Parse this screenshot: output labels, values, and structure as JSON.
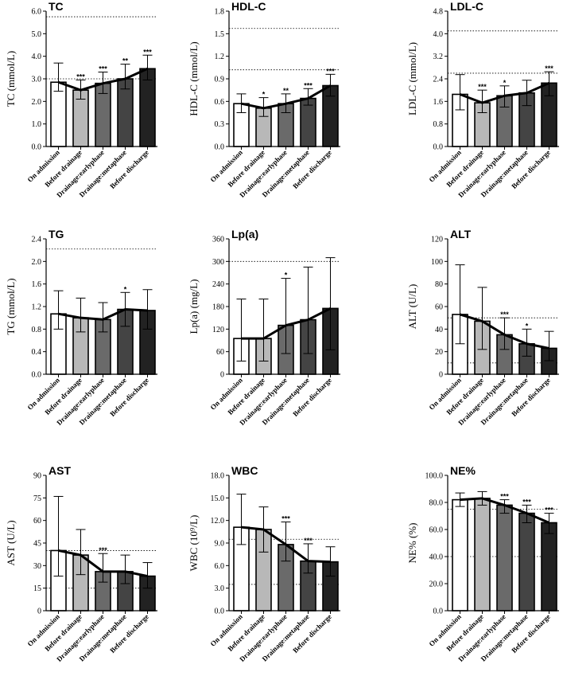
{
  "figure": {
    "categories": [
      "On admission",
      "Before drainage",
      "Drainage:earlyphase",
      "Drainage:metaphase",
      "Before discharge"
    ],
    "bar_colors": [
      "#ffffff",
      "#b8b8b8",
      "#6a6a6a",
      "#444444",
      "#222222"
    ],
    "line_color": "#000000"
  },
  "chart_data": [
    {
      "type": "bar",
      "title": "TC",
      "ylabel": "TC (mmol/L)",
      "ylim": [
        0,
        6
      ],
      "yticks": [
        "0.0",
        "1.0",
        "2.0",
        "3.0",
        "4.0",
        "5.0",
        "6.0"
      ],
      "values": [
        2.85,
        2.5,
        2.8,
        3.0,
        3.45
      ],
      "errors": [
        [
          2.45,
          3.7
        ],
        [
          2.1,
          2.95
        ],
        [
          2.35,
          3.3
        ],
        [
          2.55,
          3.65
        ],
        [
          2.95,
          4.05
        ]
      ],
      "significance": [
        "",
        "***",
        "***",
        "**",
        "***"
      ],
      "reference_lines": [
        3.0,
        5.75
      ]
    },
    {
      "type": "bar",
      "title": "HDL-C",
      "ylabel": "HDL-C (mmol/L)",
      "ylim": [
        0,
        1.8
      ],
      "yticks": [
        "0.0",
        "0.3",
        "0.6",
        "0.9",
        "1.2",
        "1.5",
        "1.8"
      ],
      "values": [
        0.57,
        0.51,
        0.57,
        0.64,
        0.81
      ],
      "errors": [
        [
          0.45,
          0.7
        ],
        [
          0.4,
          0.65
        ],
        [
          0.45,
          0.7
        ],
        [
          0.55,
          0.77
        ],
        [
          0.67,
          0.96
        ]
      ],
      "significance": [
        "",
        "*",
        "**",
        "***",
        "***"
      ],
      "reference_lines": [
        1.02,
        1.57
      ]
    },
    {
      "type": "bar",
      "title": "LDL-C",
      "ylabel": "LDL-C (mmol/L)",
      "ylim": [
        0,
        4.8
      ],
      "yticks": [
        "0.0",
        "0.8",
        "1.6",
        "2.4",
        "3.2",
        "4.0",
        "4.8"
      ],
      "values": [
        1.85,
        1.55,
        1.8,
        1.9,
        2.25
      ],
      "errors": [
        [
          1.3,
          2.55
        ],
        [
          1.2,
          2.0
        ],
        [
          1.4,
          2.15
        ],
        [
          1.45,
          2.35
        ],
        [
          1.8,
          2.65
        ]
      ],
      "significance": [
        "",
        "***",
        "*",
        "",
        "***"
      ],
      "reference_lines": [
        2.6,
        4.1
      ]
    },
    {
      "type": "bar",
      "title": "TG",
      "ylabel": "TG (mmol/L)",
      "ylim": [
        0,
        2.4
      ],
      "yticks": [
        "0.0",
        "0.4",
        "0.8",
        "1.2",
        "1.6",
        "2.0",
        "2.4"
      ],
      "values": [
        1.07,
        1.0,
        0.97,
        1.15,
        1.13
      ],
      "errors": [
        [
          0.8,
          1.48
        ],
        [
          0.75,
          1.35
        ],
        [
          0.75,
          1.27
        ],
        [
          0.85,
          1.45
        ],
        [
          0.8,
          1.5
        ]
      ],
      "significance": [
        "",
        "",
        "",
        "*",
        ""
      ],
      "reference_lines": [
        2.22
      ]
    },
    {
      "type": "bar",
      "title": "Lp(a)",
      "ylabel": "Lp(a) (mg/L)",
      "ylim": [
        0,
        360
      ],
      "yticks": [
        "0",
        "60",
        "120",
        "180",
        "240",
        "300",
        "360"
      ],
      "values": [
        95,
        95,
        130,
        145,
        175
      ],
      "errors": [
        [
          35,
          200
        ],
        [
          35,
          200
        ],
        [
          55,
          255
        ],
        [
          55,
          285
        ],
        [
          65,
          310
        ]
      ],
      "significance": [
        "",
        "",
        "*",
        "",
        ""
      ],
      "reference_lines": [
        300
      ]
    },
    {
      "type": "bar",
      "title": "ALT",
      "ylabel": "ALT (U/L)",
      "ylim": [
        0,
        120
      ],
      "yticks": [
        "0",
        "20",
        "40",
        "60",
        "80",
        "100",
        "120"
      ],
      "values": [
        53,
        47,
        35,
        27,
        23
      ],
      "errors": [
        [
          27,
          97
        ],
        [
          22,
          77
        ],
        [
          22,
          50
        ],
        [
          16,
          40
        ],
        [
          12,
          38
        ]
      ],
      "significance": [
        "",
        "",
        "***",
        "*",
        ""
      ],
      "reference_lines": [
        10,
        50
      ]
    },
    {
      "type": "bar",
      "title": "AST",
      "ylabel": "AST (U/L)",
      "ylim": [
        0,
        90
      ],
      "yticks": [
        "0",
        "15",
        "30",
        "45",
        "60",
        "75",
        "90"
      ],
      "values": [
        40,
        37,
        26,
        26,
        23
      ],
      "errors": [
        [
          23,
          76
        ],
        [
          24,
          54
        ],
        [
          19,
          38
        ],
        [
          18,
          37
        ],
        [
          15,
          32
        ]
      ],
      "significance": [
        "",
        "",
        "***",
        "",
        ""
      ],
      "reference_lines": [
        15,
        40
      ]
    },
    {
      "type": "bar",
      "title": "WBC",
      "ylabel": "WBC (10⁹/L)",
      "ylim": [
        0,
        18
      ],
      "yticks": [
        "0.0",
        "3.0",
        "6.0",
        "9.0",
        "12.0",
        "15.0",
        "18.0"
      ],
      "values": [
        11.1,
        10.8,
        8.8,
        6.6,
        6.5
      ],
      "errors": [
        [
          8.8,
          15.5
        ],
        [
          7.8,
          13.8
        ],
        [
          6.6,
          11.8
        ],
        [
          5.0,
          8.9
        ],
        [
          4.6,
          8.5
        ]
      ],
      "significance": [
        "",
        "",
        "***",
        "***",
        ""
      ],
      "reference_lines": [
        3.5,
        9.5
      ]
    },
    {
      "type": "bar",
      "title": "NE%",
      "ylabel": "NE% (%)",
      "ylim": [
        0,
        100
      ],
      "yticks": [
        "0.0",
        "20.0",
        "40.0",
        "60.0",
        "80.0",
        "100.0"
      ],
      "values": [
        82,
        83,
        78,
        72,
        65
      ],
      "errors": [
        [
          77,
          87
        ],
        [
          78,
          88
        ],
        [
          72,
          82
        ],
        [
          65,
          78
        ],
        [
          57,
          72
        ]
      ],
      "significance": [
        "",
        "",
        "***",
        "***",
        "***"
      ],
      "reference_lines": [
        40,
        75
      ]
    }
  ]
}
